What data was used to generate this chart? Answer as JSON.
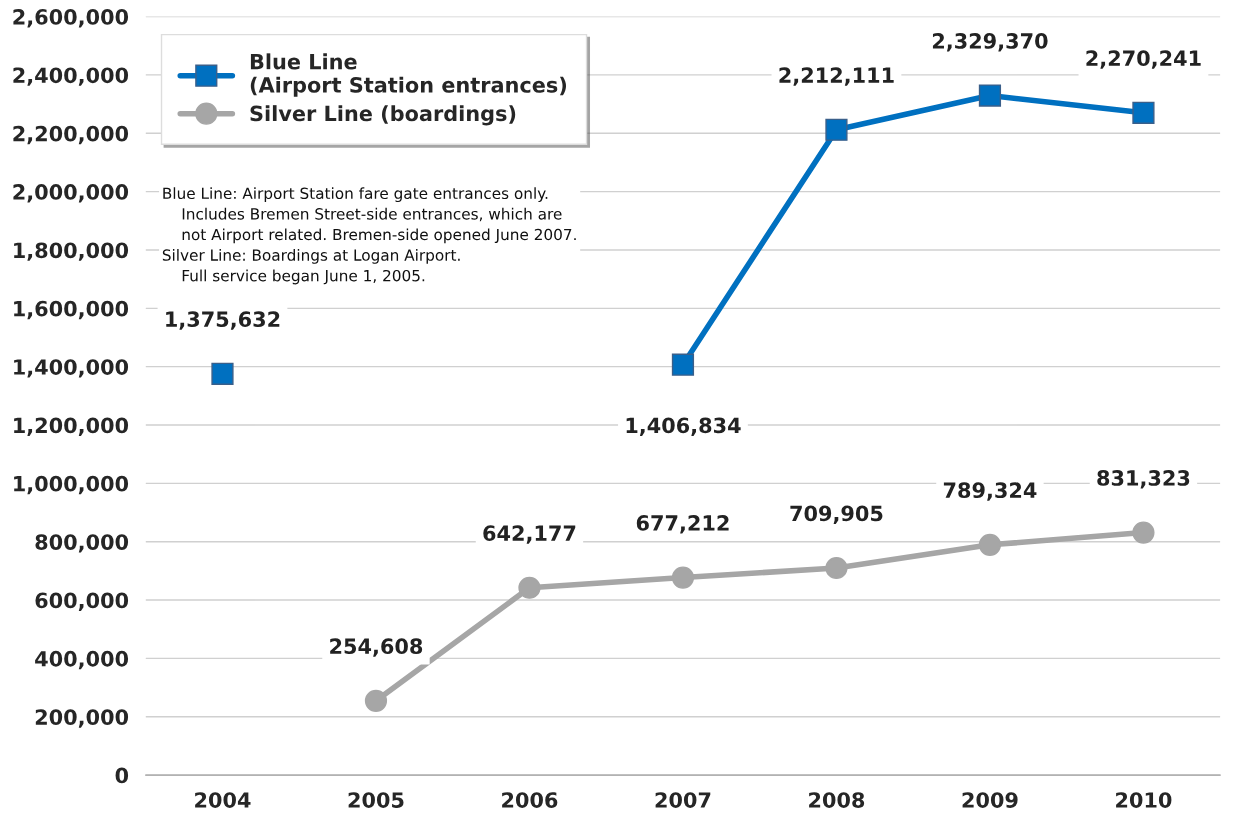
{
  "chart_data": {
    "type": "line",
    "categories": [
      "2004",
      "2005",
      "2006",
      "2007",
      "2008",
      "2009",
      "2010"
    ],
    "series": [
      {
        "name": "Blue Line\n(Airport Station entrances)",
        "color": "#0070c0",
        "marker": "square",
        "values": [
          1375632,
          null,
          null,
          1406834,
          2212111,
          2329370,
          2270241
        ],
        "value_labels": [
          "1,375,632",
          null,
          null,
          "1,406,834",
          "2,212,111",
          "2,329,370",
          "2,270,241"
        ]
      },
      {
        "name": "Silver Line (boardings)",
        "color": "#a6a6a6",
        "marker": "circle",
        "values": [
          null,
          254608,
          642177,
          677212,
          709905,
          789324,
          831323
        ],
        "value_labels": [
          null,
          "254,608",
          "642,177",
          "677,212",
          "709,905",
          "789,324",
          "831,323"
        ]
      }
    ],
    "ylim": [
      0,
      2600000
    ],
    "yticks": [
      0,
      {
        "value": 200000,
        "label": "200,000"
      },
      {
        "value": 400000,
        "label": "400,000"
      },
      {
        "value": 600000,
        "label": "600,000"
      },
      {
        "value": 800000,
        "label": "800,000"
      },
      {
        "value": 1000000,
        "label": "1,000,000"
      },
      {
        "value": 1200000,
        "label": "1,200,000"
      },
      {
        "value": 1400000,
        "label": "1,400,000"
      },
      {
        "value": 1600000,
        "label": "1,600,000"
      },
      {
        "value": 1800000,
        "label": "1,800,000"
      },
      {
        "value": 2000000,
        "label": "2,000,000"
      },
      {
        "value": 2200000,
        "label": "2,200,000"
      },
      {
        "value": 2400000,
        "label": "2,400,000"
      },
      {
        "value": 2600000,
        "label": "2,600,000"
      }
    ],
    "grid": "y",
    "legend": "top left",
    "line_style": "solid",
    "annotations": [
      "Blue Line: Airport Station fare gate entrances only.\n    Includes Bremen Street-side entrances, which are\n    not Airport related. Bremen-side opened June 2007.\nSilver Line: Boardings at Logan Airport.\n    Full service began June 1, 2005."
    ]
  }
}
